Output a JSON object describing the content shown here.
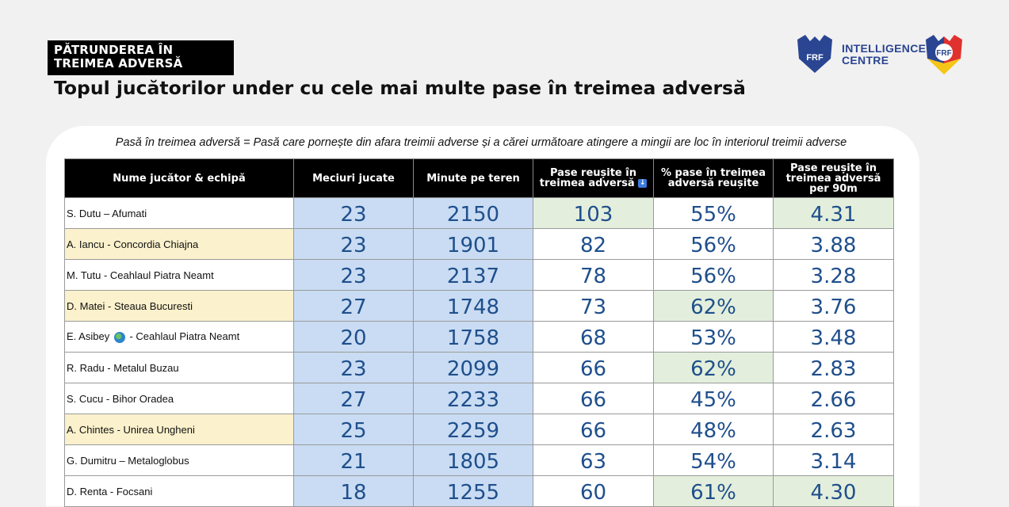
{
  "header": {
    "tag_line1": "PĂTRUNDEREA ÎN",
    "tag_line2": "TREIMEA ADVERSĂ",
    "title": "Topul jucătorilor under cu cele mai multe pase în treimea adversă",
    "ic_line1": "INTELLIGENCE",
    "ic_line2": "CENTRE",
    "logo_text": "FRF"
  },
  "definition": "Pasă în treimea adversă = Pasă care pornește din afara treimii adverse și a cărei următoare atingere a mingii are loc în interiorul treimii adverse",
  "table": {
    "headers": [
      "Nume jucător & echipă",
      "Meciuri jucate",
      "Minute pe teren",
      "Pase reușite în treimea adversă",
      "% pase în treimea adversă reușite",
      "Pase reușite în treimea adversă per 90m"
    ],
    "sort_icon": "sort-down-arrow-icon",
    "rows": [
      {
        "name": "S. Dutu – Afumati",
        "matches": "23",
        "minutes": "2150",
        "passes": "103",
        "pct": "55%",
        "per90": "4.31",
        "hl_name": false,
        "hl_passes": true,
        "hl_pct": false,
        "hl_per90": true
      },
      {
        "name": "A. Iancu - Concordia Chiajna",
        "matches": "23",
        "minutes": "1901",
        "passes": "82",
        "pct": "56%",
        "per90": "3.88",
        "hl_name": true,
        "hl_passes": false,
        "hl_pct": false,
        "hl_per90": false
      },
      {
        "name": "M. Tutu - Ceahlaul Piatra Neamt",
        "matches": "23",
        "minutes": "2137",
        "passes": "78",
        "pct": "56%",
        "per90": "3.28",
        "hl_name": false,
        "hl_passes": false,
        "hl_pct": false,
        "hl_per90": false
      },
      {
        "name": "D. Matei - Steaua Bucuresti",
        "matches": "27",
        "minutes": "1748",
        "passes": "73",
        "pct": "62%",
        "per90": "3.76",
        "hl_name": true,
        "hl_passes": false,
        "hl_pct": true,
        "hl_per90": false
      },
      {
        "name_pre": "E. Asibey",
        "name_post": "- Ceahlaul Piatra Neamt",
        "globe": true,
        "matches": "20",
        "minutes": "1758",
        "passes": "68",
        "pct": "53%",
        "per90": "3.48",
        "hl_name": false,
        "hl_passes": false,
        "hl_pct": false,
        "hl_per90": false
      },
      {
        "name": "R. Radu - Metalul Buzau",
        "matches": "23",
        "minutes": "2099",
        "passes": "66",
        "pct": "62%",
        "per90": "2.83",
        "hl_name": false,
        "hl_passes": false,
        "hl_pct": true,
        "hl_per90": false
      },
      {
        "name": "S. Cucu - Bihor Oradea",
        "matches": "27",
        "minutes": "2233",
        "passes": "66",
        "pct": "45%",
        "per90": "2.66",
        "hl_name": false,
        "hl_passes": false,
        "hl_pct": false,
        "hl_per90": false
      },
      {
        "name": "A. Chintes - Unirea Ungheni",
        "matches": "25",
        "minutes": "2259",
        "passes": "66",
        "pct": "48%",
        "per90": "2.63",
        "hl_name": true,
        "hl_passes": false,
        "hl_pct": false,
        "hl_per90": false
      },
      {
        "name": "G. Dumitru – Metaloglobus",
        "matches": "21",
        "minutes": "1805",
        "passes": "63",
        "pct": "54%",
        "per90": "3.14",
        "hl_name": false,
        "hl_passes": false,
        "hl_pct": false,
        "hl_per90": false
      },
      {
        "name": "D. Renta - Focsani",
        "matches": "18",
        "minutes": "1255",
        "passes": "60",
        "pct": "61%",
        "per90": "4.30",
        "hl_name": false,
        "hl_passes": false,
        "hl_pct": true,
        "hl_per90": true
      }
    ]
  },
  "colors": {
    "number_text": "#1f4f8c",
    "blue_fill": "#c9dcf3",
    "green_fill": "#e3efdc",
    "yellow_fill": "#fbf1cc",
    "brand_blue": "#2a4592",
    "brand_red": "#e0312f",
    "brand_yellow": "#f5c518"
  }
}
